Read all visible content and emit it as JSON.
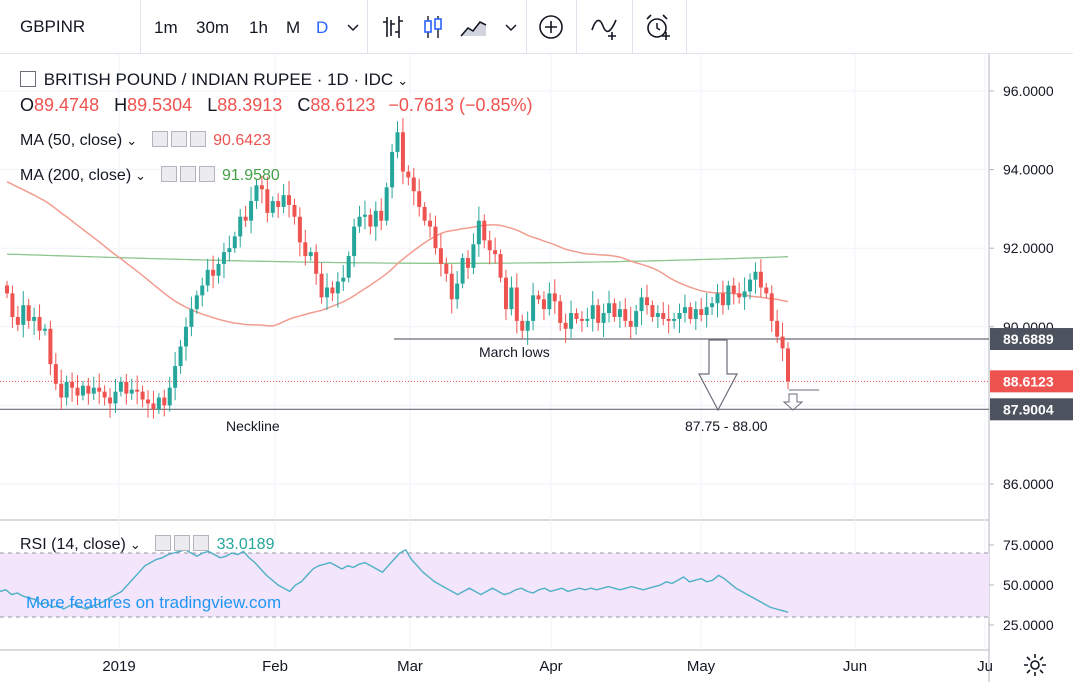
{
  "toolbar": {
    "symbol": "GBPINR",
    "intervals": [
      "1m",
      "30m",
      "1h",
      "M",
      "D"
    ],
    "active_interval": "D",
    "icons": [
      "chevron-down-icon",
      "bar-style-icon",
      "candle-style-icon",
      "area-style-icon",
      "chevron-down-icon",
      "add-compare-icon",
      "indicators-icon",
      "alert-icon"
    ]
  },
  "legend": {
    "title": "BRITISH POUND / INDIAN RUPEE · 1D · IDC",
    "ohlc": {
      "o_label": "O",
      "o": "89.4748",
      "h_label": "H",
      "h": "89.5304",
      "l_label": "L",
      "l": "88.3913",
      "c_label": "C",
      "c": "88.6123",
      "change": "−0.7613 (−0.85%)"
    },
    "ma50": {
      "label": "MA (50, close)",
      "value": "90.6423",
      "color": "#ef5350"
    },
    "ma200": {
      "label": "MA (200, close)",
      "value": "91.9580",
      "color": "#26a69a"
    },
    "rsi": {
      "label": "RSI (14, close)",
      "value": "33.0189",
      "color": "#26a69a"
    }
  },
  "watermark": "More features on tradingview.com",
  "colors": {
    "up": "#26a69a",
    "down": "#ef5350",
    "ma50": "#f29c8f",
    "ma200": "#8dc68f",
    "rsi_line": "#4fb0c6",
    "rsi_band": "#f3e5fb",
    "grid": "#f0f3fa",
    "scale_text": "#131722"
  },
  "chart_data": [
    {
      "type": "candlestick",
      "title": "",
      "ylim": [
        85.2,
        97.2
      ],
      "y_ticks": [
        "96.0000",
        "94.0000",
        "92.0000",
        "90.0000",
        "88.0000",
        "86.0000"
      ],
      "y_tick_values": [
        96,
        94,
        92,
        90,
        88,
        86
      ],
      "x_ticks": [
        "2019",
        "Feb",
        "Mar",
        "Apr",
        "May",
        "Jun",
        "Ju"
      ],
      "price_labels": [
        {
          "value": 89.6889,
          "text": "89.6889",
          "style": "dark"
        },
        {
          "value": 88.6123,
          "text": "88.6123",
          "style": "red"
        },
        {
          "value": 87.9004,
          "text": "87.9004",
          "style": "dark"
        }
      ],
      "annotations": [
        {
          "text": "March lows"
        },
        {
          "text": "Neckline"
        },
        {
          "text": "87.75 - 88.00"
        }
      ],
      "levels": {
        "march_lows": 89.6889,
        "neckline": 87.9004,
        "last": 88.6123
      },
      "close_series": [
        90.85,
        90.25,
        90.05,
        90.55,
        90.15,
        90.25,
        89.9,
        89.95,
        89.05,
        88.55,
        88.2,
        88.6,
        88.45,
        88.25,
        88.5,
        88.3,
        88.45,
        88.35,
        88.2,
        88.05,
        88.35,
        88.6,
        88.3,
        88.4,
        88.35,
        88.15,
        88.05,
        87.9,
        88.2,
        88.0,
        88.45,
        89.0,
        89.5,
        90.0,
        90.45,
        90.8,
        91.05,
        91.45,
        91.3,
        91.6,
        91.9,
        92.0,
        92.3,
        92.8,
        92.7,
        93.2,
        93.6,
        93.5,
        92.9,
        93.2,
        93.05,
        93.35,
        93.1,
        92.8,
        92.15,
        91.8,
        91.9,
        91.35,
        90.75,
        91.0,
        90.85,
        91.15,
        91.25,
        91.8,
        92.55,
        92.8,
        92.85,
        92.55,
        92.95,
        92.7,
        93.55,
        94.45,
        94.95,
        93.95,
        93.8,
        93.45,
        93.05,
        92.7,
        92.55,
        92.0,
        91.6,
        91.35,
        90.7,
        91.1,
        91.75,
        91.5,
        92.1,
        92.7,
        92.2,
        91.95,
        91.85,
        91.25,
        90.45,
        91.0,
        90.15,
        89.9,
        90.15,
        90.8,
        90.7,
        90.45,
        90.85,
        90.65,
        90.1,
        89.95,
        90.35,
        90.2,
        90.15,
        90.2,
        90.55,
        90.1,
        90.35,
        90.6,
        90.25,
        90.45,
        90.15,
        90.0,
        90.4,
        90.75,
        90.55,
        90.25,
        90.35,
        90.2,
        90.15,
        90.2,
        90.35,
        90.5,
        90.2,
        90.45,
        90.3,
        90.5,
        90.6,
        90.85,
        90.55,
        91.05,
        90.85,
        90.75,
        90.9,
        91.2,
        91.4,
        91.0,
        90.85,
        90.15,
        89.75,
        89.45,
        88.61
      ],
      "ma50_series_endpoints": {
        "start": 93.75,
        "end": 90.64
      },
      "ma200_series_endpoints": {
        "start": 91.85,
        "end": 91.96
      }
    },
    {
      "type": "line",
      "title": "",
      "ylim": [
        22,
        78
      ],
      "y_ticks": [
        "75.0000",
        "50.0000",
        "25.0000"
      ],
      "y_tick_values": [
        75,
        50,
        25
      ],
      "band": [
        30,
        70
      ],
      "series": [
        {
          "values": [
            46,
            47,
            44,
            45,
            43,
            42,
            41,
            38,
            39,
            36,
            37,
            35,
            37,
            38,
            36,
            35,
            37,
            38,
            40,
            42,
            44,
            46,
            50,
            54,
            58,
            62,
            64,
            66,
            67,
            69,
            70,
            71,
            72,
            70,
            68,
            70,
            71,
            69,
            67,
            68,
            70,
            69,
            71,
            67,
            64,
            60,
            56,
            53,
            50,
            48,
            46,
            50,
            52,
            56,
            60,
            62,
            63,
            64,
            62,
            60,
            62,
            61,
            63,
            64,
            62,
            60,
            58,
            62,
            66,
            70,
            72,
            66,
            62,
            58,
            55,
            52,
            50,
            48,
            46,
            44,
            46,
            48,
            46,
            44,
            46,
            48,
            46,
            44,
            45,
            47,
            48,
            46,
            45,
            47,
            48,
            46,
            47,
            48,
            46,
            47,
            48,
            47,
            48,
            47,
            48,
            49,
            48,
            47,
            48,
            49,
            48,
            47,
            48,
            49,
            50,
            52,
            51,
            53,
            55,
            52,
            53,
            54,
            52,
            53,
            56,
            54,
            51,
            48,
            46,
            44,
            42,
            40,
            38,
            36,
            35,
            34,
            33
          ]
        }
      ]
    }
  ]
}
